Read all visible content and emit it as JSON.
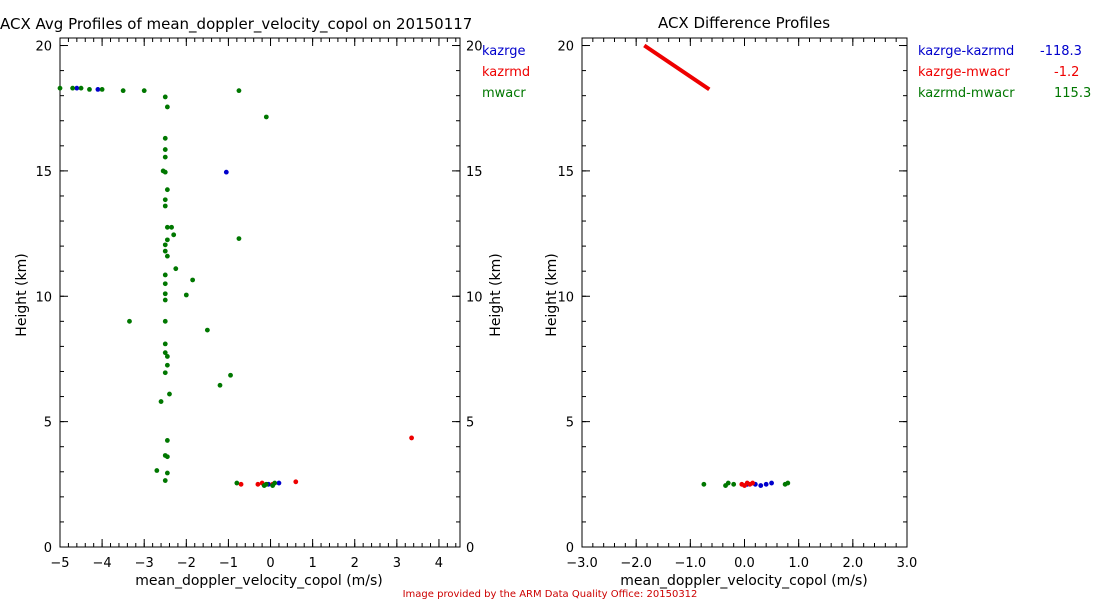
{
  "footer": "Image provided by the ARM Data Quality Office: 20150312",
  "chart_data": [
    {
      "type": "scatter",
      "title": "ACX Avg Profiles of mean_doppler_velocity_copol on 20150117",
      "xlabel": "mean_doppler_velocity_copol (m/s)",
      "ylabel": "Height (km)",
      "ylabel_right": "Height (km)",
      "xlim": [
        -5,
        4.5
      ],
      "ylim": [
        0,
        20.3
      ],
      "xticks": [
        -5,
        -4,
        -3,
        -2,
        -1,
        0,
        1,
        2,
        3,
        4
      ],
      "xtick_labels": [
        "−5",
        "−4",
        "−3",
        "−2",
        "−1",
        "0",
        "1",
        "2",
        "3",
        "4"
      ],
      "yticks": [
        0,
        5,
        10,
        15,
        20
      ],
      "ytick_labels": [
        "0",
        "5",
        "10",
        "15",
        "20"
      ],
      "legend_position": "top-right outside",
      "series": [
        {
          "name": "kazrge",
          "color": "#0000cc",
          "points": [
            [
              -4.6,
              18.3
            ],
            [
              -4.1,
              18.25
            ],
            [
              -1.05,
              14.95
            ],
            [
              0.2,
              2.55
            ],
            [
              -0.05,
              2.5
            ]
          ]
        },
        {
          "name": "kazrmd",
          "color": "#ee0000",
          "points": [
            [
              3.35,
              4.35
            ],
            [
              -0.7,
              2.5
            ],
            [
              -0.3,
              2.5
            ],
            [
              0.6,
              2.6
            ],
            [
              -0.2,
              2.55
            ],
            [
              0.05,
              2.5
            ]
          ]
        },
        {
          "name": "mwacr",
          "color": "#007700",
          "points": [
            [
              -5,
              18.3
            ],
            [
              -4.7,
              18.3
            ],
            [
              -4.5,
              18.3
            ],
            [
              -4.3,
              18.25
            ],
            [
              -4,
              18.25
            ],
            [
              -3.5,
              18.2
            ],
            [
              -3,
              18.2
            ],
            [
              -2.5,
              17.95
            ],
            [
              -2.45,
              17.55
            ],
            [
              -0.75,
              18.2
            ],
            [
              -0.1,
              17.15
            ],
            [
              -2.5,
              16.3
            ],
            [
              -2.5,
              15.85
            ],
            [
              -2.5,
              15.55
            ],
            [
              -2.55,
              15.0
            ],
            [
              -2.5,
              14.95
            ],
            [
              -2.45,
              14.25
            ],
            [
              -2.5,
              13.85
            ],
            [
              -2.5,
              13.6
            ],
            [
              -2.45,
              12.75
            ],
            [
              -2.35,
              12.75
            ],
            [
              -2.3,
              12.45
            ],
            [
              -2.45,
              12.25
            ],
            [
              -2.5,
              12.05
            ],
            [
              -2.5,
              11.8
            ],
            [
              -2.45,
              11.6
            ],
            [
              -0.75,
              12.3
            ],
            [
              -2.25,
              11.1
            ],
            [
              -2.5,
              10.85
            ],
            [
              -2.5,
              10.5
            ],
            [
              -2.5,
              10.1
            ],
            [
              -2.5,
              9.85
            ],
            [
              -1.85,
              10.65
            ],
            [
              -2.0,
              10.05
            ],
            [
              -3.35,
              9.0
            ],
            [
              -2.5,
              9.0
            ],
            [
              -1.5,
              8.65
            ],
            [
              -2.5,
              8.1
            ],
            [
              -2.5,
              7.75
            ],
            [
              -2.45,
              7.6
            ],
            [
              -2.45,
              7.25
            ],
            [
              -2.5,
              6.95
            ],
            [
              -0.95,
              6.85
            ],
            [
              -1.2,
              6.45
            ],
            [
              -2.4,
              6.1
            ],
            [
              -2.6,
              5.8
            ],
            [
              -2.45,
              4.25
            ],
            [
              -2.5,
              3.65
            ],
            [
              -2.45,
              3.6
            ],
            [
              -2.7,
              3.05
            ],
            [
              -2.45,
              2.95
            ],
            [
              -2.5,
              2.65
            ],
            [
              -0.8,
              2.55
            ],
            [
              -0.1,
              2.5
            ],
            [
              0.1,
              2.55
            ],
            [
              0.05,
              2.45
            ],
            [
              -0.15,
              2.45
            ]
          ]
        }
      ]
    },
    {
      "type": "scatter",
      "title": "ACX Difference Profiles",
      "xlabel": "mean_doppler_velocity_copol (m/s)",
      "ylabel": "Height (km)",
      "xlim": [
        -3,
        3
      ],
      "ylim": [
        0,
        20.3
      ],
      "xticks": [
        -3,
        -2,
        -1,
        0,
        1,
        2,
        3
      ],
      "xtick_labels": [
        "−3.0",
        "−2.0",
        "−1.0",
        "0.0",
        "1.0",
        "2.0",
        "3.0"
      ],
      "yticks": [
        0,
        5,
        10,
        15,
        20
      ],
      "ytick_labels": [
        "0",
        "5",
        "10",
        "15",
        "20"
      ],
      "legend_position": "top-right outside",
      "series": [
        {
          "name": "kazrge-kazrmd",
          "stat": "-118.3",
          "color": "#0000cc",
          "points": [
            [
              0.3,
              2.45
            ],
            [
              0.4,
              2.5
            ],
            [
              0.5,
              2.55
            ],
            [
              0.2,
              2.5
            ],
            [
              0.05,
              2.5
            ]
          ]
        },
        {
          "name": "kazrge-mwacr",
          "stat": "-1.2",
          "color": "#ee0000",
          "points": [
            [
              0.0,
              2.45
            ],
            [
              -0.05,
              2.5
            ],
            [
              0.05,
              2.55
            ],
            [
              0.15,
              2.55
            ],
            [
              0.1,
              2.5
            ]
          ],
          "line": [
            [
              -1.85,
              20.0
            ],
            [
              -0.65,
              18.25
            ]
          ]
        },
        {
          "name": "kazrmd-mwacr",
          "stat": "115.3",
          "color": "#007700",
          "points": [
            [
              -0.75,
              2.5
            ],
            [
              -0.35,
              2.45
            ],
            [
              -0.3,
              2.55
            ],
            [
              -0.2,
              2.5
            ],
            [
              0.75,
              2.5
            ],
            [
              0.8,
              2.55
            ]
          ]
        }
      ]
    }
  ]
}
